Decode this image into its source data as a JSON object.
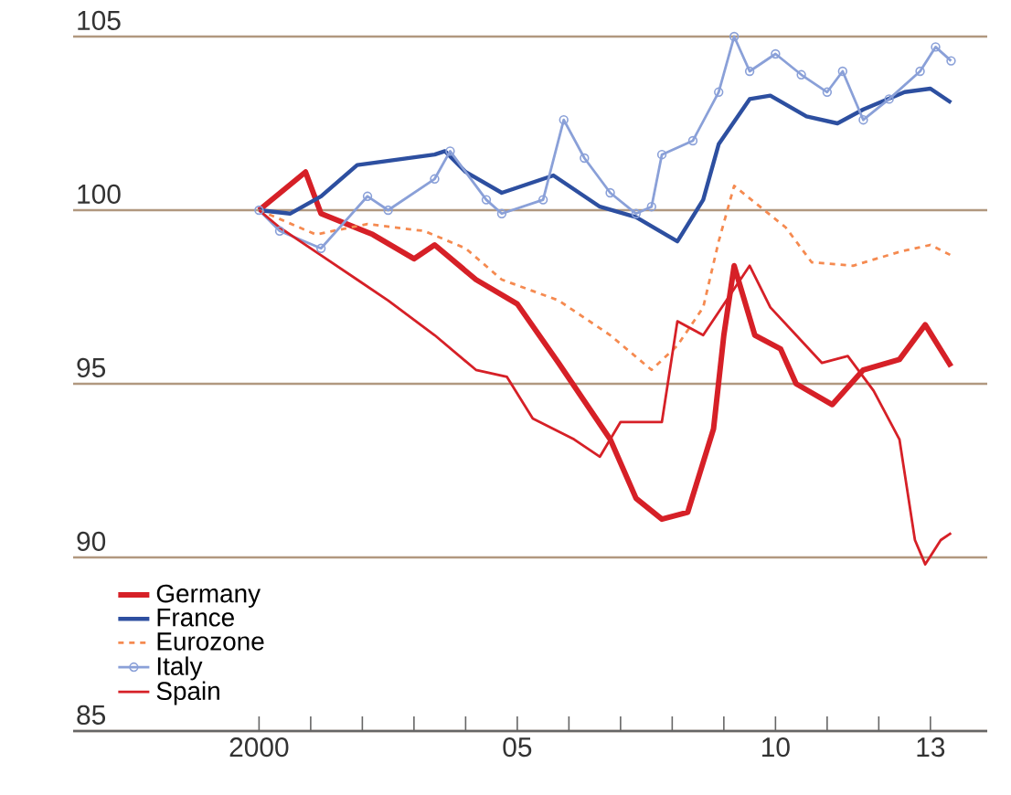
{
  "chart_data": {
    "type": "line",
    "xlim": [
      1996.4,
      2014.1
    ],
    "ylim": [
      85,
      105
    ],
    "xticks": [
      {
        "value": 2000,
        "label": "2000"
      },
      {
        "value": 2001,
        "label": null
      },
      {
        "value": 2002,
        "label": null
      },
      {
        "value": 2003,
        "label": null
      },
      {
        "value": 2004,
        "label": null
      },
      {
        "value": 2005,
        "label": "05"
      },
      {
        "value": 2006,
        "label": null
      },
      {
        "value": 2007,
        "label": null
      },
      {
        "value": 2008,
        "label": null
      },
      {
        "value": 2009,
        "label": null
      },
      {
        "value": 2010,
        "label": "10"
      },
      {
        "value": 2011,
        "label": null
      },
      {
        "value": 2012,
        "label": null
      },
      {
        "value": 2013,
        "label": "13"
      }
    ],
    "yticks": [
      85,
      90,
      95,
      100,
      105
    ],
    "grid": "y",
    "legend": "bottom left",
    "series": [
      {
        "name": "Germany",
        "color": "#d62027",
        "line_style": "solid",
        "x": [
          2000,
          2000.9,
          2001.2,
          2002.2,
          2003,
          2003.4,
          2004.2,
          2005,
          2005.8,
          2006.8,
          2007.3,
          2007.8,
          2008.3,
          2008.8,
          2009,
          2009.2,
          2009.6,
          2010.1,
          2010.4,
          2011.1,
          2011.7,
          2012.4,
          2012.9,
          2013.4
        ],
        "values": [
          100,
          101.1,
          99.9,
          99.3,
          98.6,
          99,
          98,
          97.3,
          95.6,
          93.4,
          91.7,
          91.1,
          91.3,
          93.7,
          96.4,
          98.4,
          96.4,
          96,
          95,
          94.4,
          95.4,
          95.7,
          96.7,
          95.5
        ]
      },
      {
        "name": "France",
        "color": "#2d4fa0",
        "line_style": "solid",
        "x": [
          2000,
          2000.6,
          2001.2,
          2001.9,
          2003.4,
          2003.6,
          2004,
          2004.7,
          2005.7,
          2006.6,
          2007.3,
          2008.1,
          2008.6,
          2008.9,
          2009.5,
          2009.9,
          2010.6,
          2011.2,
          2011.7,
          2012.5,
          2013,
          2013.4
        ],
        "values": [
          100,
          99.9,
          100.4,
          101.3,
          101.6,
          101.7,
          101.1,
          100.5,
          101,
          100.1,
          99.8,
          99.1,
          100.3,
          101.9,
          103.2,
          103.3,
          102.7,
          102.5,
          102.9,
          103.4,
          103.5,
          103.1
        ]
      },
      {
        "name": "Eurozone",
        "color": "#f58a50",
        "line_style": "dashed",
        "x": [
          2000,
          2001.1,
          2002.1,
          2003.2,
          2004,
          2004.7,
          2005.8,
          2006.8,
          2007.6,
          2008.1,
          2008.6,
          2008.9,
          2009.2,
          2009.7,
          2010.2,
          2010.7,
          2011.5,
          2012.4,
          2013,
          2013.4
        ],
        "values": [
          100,
          99.3,
          99.6,
          99.4,
          98.9,
          98,
          97.4,
          96.4,
          95.4,
          96.1,
          97.2,
          99.1,
          100.7,
          100.1,
          99.5,
          98.5,
          98.4,
          98.8,
          99,
          98.7
        ]
      },
      {
        "name": "Italy",
        "color": "#8aa0d8",
        "line_style": "solid",
        "marker": "circle",
        "x": [
          2000,
          2000.4,
          2001.2,
          2002.1,
          2002.5,
          2003.4,
          2003.7,
          2004.4,
          2004.7,
          2005.5,
          2005.9,
          2006.3,
          2006.8,
          2007.3,
          2007.6,
          2007.8,
          2008.4,
          2008.9,
          2009.2,
          2009.5,
          2010,
          2010.5,
          2011,
          2011.3,
          2011.7,
          2012.2,
          2012.8,
          2013.1,
          2013.4
        ],
        "values": [
          100,
          99.4,
          98.9,
          100.4,
          100,
          100.9,
          101.7,
          100.3,
          99.9,
          100.3,
          102.6,
          101.5,
          100.5,
          99.9,
          100.1,
          101.6,
          102,
          103.4,
          105,
          104,
          104.5,
          103.9,
          103.4,
          104,
          102.6,
          103.2,
          104,
          104.7,
          104.3
        ]
      },
      {
        "name": "Spain",
        "color": "#d62027",
        "line_style": "solid",
        "x": [
          2000,
          2000.4,
          2001.2,
          2001.9,
          2002.5,
          2003.4,
          2004.2,
          2004.8,
          2005.3,
          2006.1,
          2006.6,
          2007,
          2007.8,
          2008.1,
          2008.6,
          2009.5,
          2009.9,
          2010.4,
          2010.9,
          2011.4,
          2011.9,
          2012.4,
          2012.7,
          2012.9,
          2013.2,
          2013.4
        ],
        "values": [
          100,
          99.5,
          98.7,
          98,
          97.4,
          96.4,
          95.4,
          95.2,
          94,
          93.4,
          92.9,
          93.9,
          93.9,
          96.8,
          96.4,
          98.4,
          97.2,
          96.4,
          95.6,
          95.8,
          94.8,
          93.4,
          90.5,
          89.8,
          90.5,
          90.7
        ]
      }
    ]
  }
}
